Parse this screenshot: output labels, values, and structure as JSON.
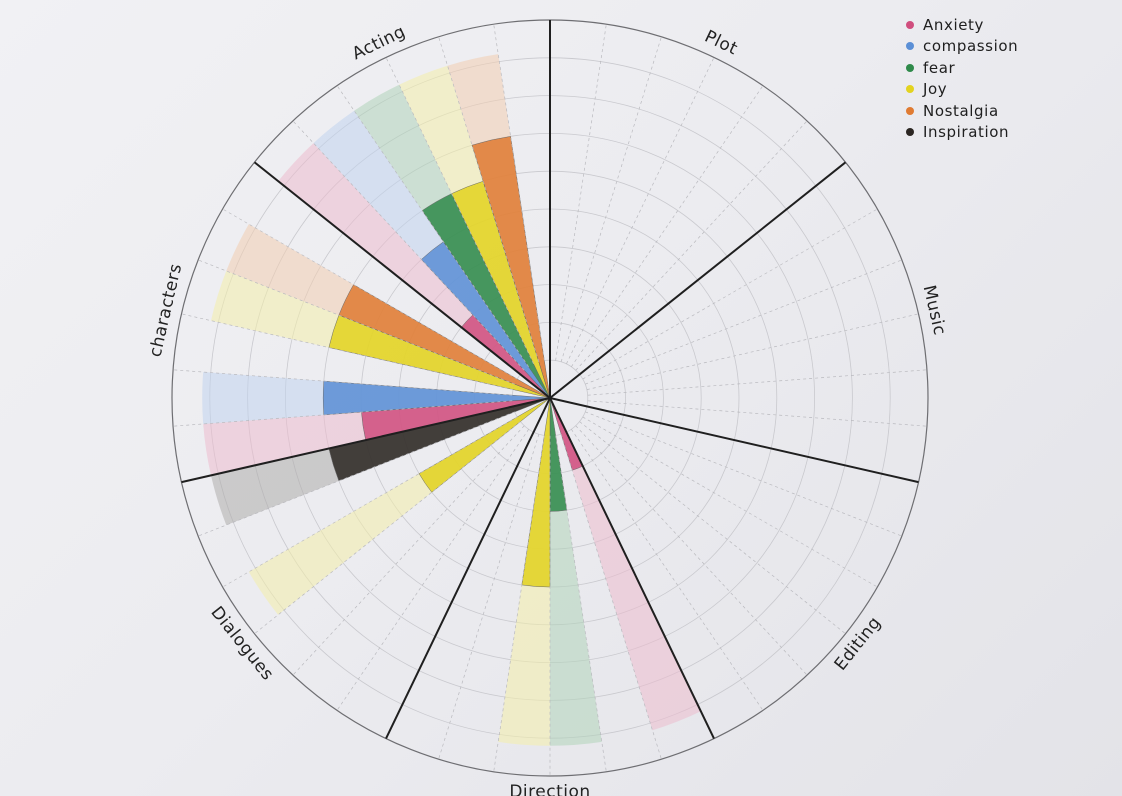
{
  "chart_data": {
    "type": "radial-bar",
    "max_rings": 10,
    "categories": [
      "Plot",
      "Music",
      "Editing",
      "Direction",
      "Dialogues",
      "characters",
      "Acting"
    ],
    "series": [
      {
        "name": "Anxiety",
        "color": "#d04e7e"
      },
      {
        "name": "compassion",
        "color": "#5b8fd6"
      },
      {
        "name": "fear",
        "color": "#2f8a4a"
      },
      {
        "name": "Joy",
        "color": "#e3d31f"
      },
      {
        "name": "Nostalgia",
        "color": "#e07b32"
      },
      {
        "name": "Inspiration",
        "color": "#2b2622"
      }
    ],
    "values": {
      "Plot": [
        0,
        0,
        0,
        0,
        0,
        0
      ],
      "Music": [
        0,
        0,
        0,
        0,
        0,
        0
      ],
      "Editing": [
        0,
        0,
        0,
        0,
        0,
        0
      ],
      "Direction": [
        2,
        0,
        3,
        5,
        0,
        0
      ],
      "Dialogues": [
        0,
        0,
        0,
        4,
        0,
        6
      ],
      "characters": [
        5,
        6,
        0,
        6,
        6,
        0
      ],
      "Acting": [
        3,
        5,
        6,
        6,
        7,
        0
      ]
    }
  },
  "legend": {
    "items": [
      {
        "label": "Anxiety",
        "color": "#d04e7e"
      },
      {
        "label": "compassion",
        "color": "#5b8fd6"
      },
      {
        "label": "fear",
        "color": "#2f8a4a"
      },
      {
        "label": "Joy",
        "color": "#e3d31f"
      },
      {
        "label": "Nostalgia",
        "color": "#e07b32"
      },
      {
        "label": "Inspiration",
        "color": "#2b2622"
      }
    ]
  }
}
